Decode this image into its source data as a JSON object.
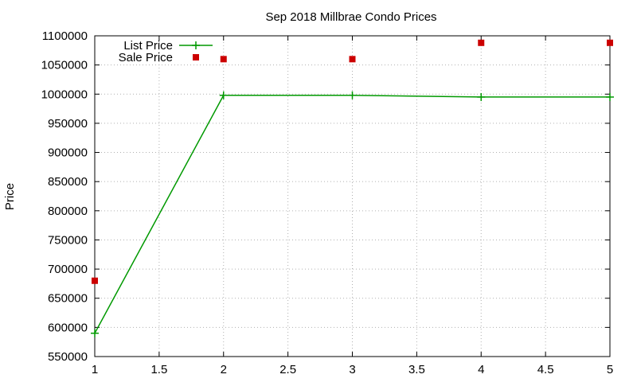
{
  "chart_data": {
    "type": "line",
    "title": "Sep 2018 Millbrae Condo Prices",
    "xlabel": "",
    "ylabel": "Price",
    "xlim": [
      1,
      5
    ],
    "ylim": [
      550000,
      1100000
    ],
    "x_ticks": [
      "1",
      "1.5",
      "2",
      "2.5",
      "3",
      "3.5",
      "4",
      "4.5",
      "5"
    ],
    "y_ticks": [
      "550000",
      "600000",
      "650000",
      "700000",
      "750000",
      "800000",
      "850000",
      "900000",
      "950000",
      "1000000",
      "1050000",
      "1100000"
    ],
    "grid": true,
    "legend_position": "top-left",
    "series": [
      {
        "name": "List Price",
        "kind": "line-points",
        "marker": "plus",
        "color": "#009900",
        "x": [
          1,
          2,
          3,
          4,
          5
        ],
        "y": [
          590000,
          998000,
          998000,
          995000,
          995000
        ]
      },
      {
        "name": "Sale Price",
        "kind": "points",
        "marker": "square",
        "color": "#cc0000",
        "x": [
          1,
          2,
          3,
          4,
          5
        ],
        "y": [
          680000,
          1060000,
          1060000,
          1088000,
          1088000
        ]
      }
    ]
  }
}
